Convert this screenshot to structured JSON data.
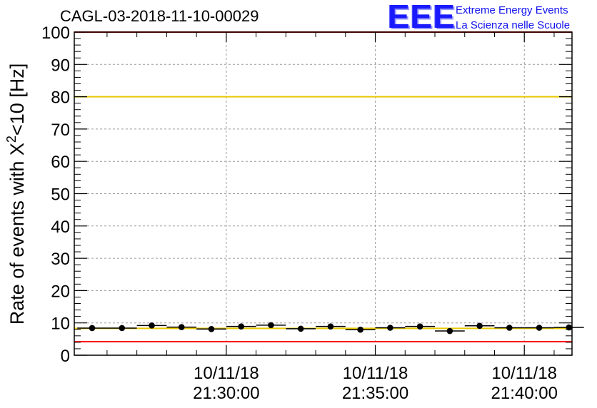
{
  "header": {
    "run_title": "CAGL-03-2018-11-10-00029"
  },
  "logo": {
    "mark": "EEE",
    "line1": "Extreme Energy Events",
    "line2": "La Scienza nelle Scuole",
    "color": "#1a1aff"
  },
  "chart_data": {
    "type": "scatter",
    "ylabel_main": "Rate of events with X",
    "ylabel_sup": "2",
    "ylabel_tail": "<10 [Hz]",
    "ylim": [
      0,
      100
    ],
    "yticks": [
      0,
      10,
      20,
      30,
      40,
      50,
      60,
      70,
      80,
      90,
      100
    ],
    "xlim_minutes": [
      24.9,
      41.6
    ],
    "xticks": [
      {
        "date": "10/11/18",
        "time": "21:30:00",
        "minute": 30
      },
      {
        "date": "10/11/18",
        "time": "21:35:00",
        "minute": 35
      },
      {
        "date": "10/11/18",
        "time": "21:40:00",
        "minute": 40
      }
    ],
    "grid": true,
    "points_minute": [
      25.5,
      26.5,
      27.5,
      28.5,
      29.5,
      30.5,
      31.5,
      32.5,
      33.5,
      34.5,
      35.5,
      36.5,
      37.5,
      38.5,
      39.5,
      40.5,
      41.5
    ],
    "points_rate": [
      8.4,
      8.4,
      9.2,
      8.7,
      8.1,
      8.9,
      9.3,
      8.2,
      8.9,
      7.9,
      8.5,
      8.9,
      7.5,
      9.1,
      8.5,
      8.5,
      8.6
    ],
    "bin_halfwidth_minutes": 0.5,
    "reference_lines": [
      {
        "value": 80,
        "color": "#e8c800"
      },
      {
        "value": 8.3,
        "color": "#e8c800"
      },
      {
        "value": 100,
        "color": "#ff0000"
      },
      {
        "value": 4.2,
        "color": "#ff0000"
      }
    ]
  }
}
